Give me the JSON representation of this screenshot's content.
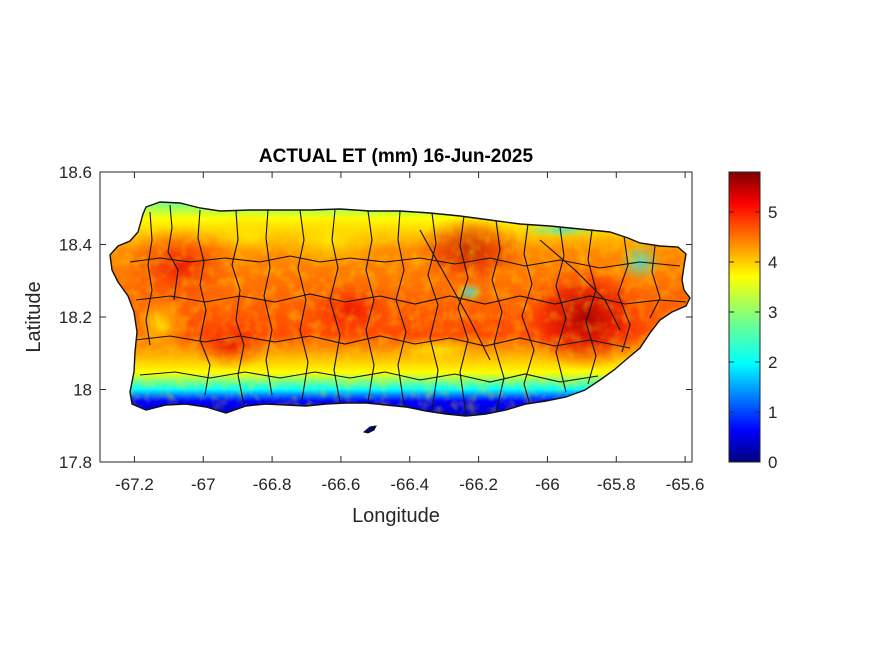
{
  "chart_data": {
    "type": "heatmap",
    "title": "ACTUAL ET (mm) 16-Jun-2025",
    "xlabel": "Longitude",
    "ylabel": "Latitude",
    "xlim": [
      -67.3,
      -65.58
    ],
    "ylim": [
      17.8,
      18.6
    ],
    "x_ticks": [
      -67.2,
      -67,
      -66.8,
      -66.6,
      -66.4,
      -66.2,
      -66,
      -65.8,
      -65.6
    ],
    "x_tick_labels": [
      "-67.2",
      "-67",
      "-66.8",
      "-66.6",
      "-66.4",
      "-66.2",
      "-66",
      "-65.8",
      "-65.6"
    ],
    "y_ticks": [
      17.8,
      18,
      18.2,
      18.4,
      18.6
    ],
    "y_tick_labels": [
      "17.8",
      "18",
      "18.2",
      "18.4",
      "18.6"
    ],
    "colorbar": {
      "colormap": "jet",
      "min": 0,
      "max": 5.8,
      "ticks": [
        0,
        1,
        2,
        3,
        4,
        5
      ],
      "tick_labels": [
        "0",
        "1",
        "2",
        "3",
        "4",
        "5"
      ]
    },
    "grid": false,
    "legend": "none"
  }
}
